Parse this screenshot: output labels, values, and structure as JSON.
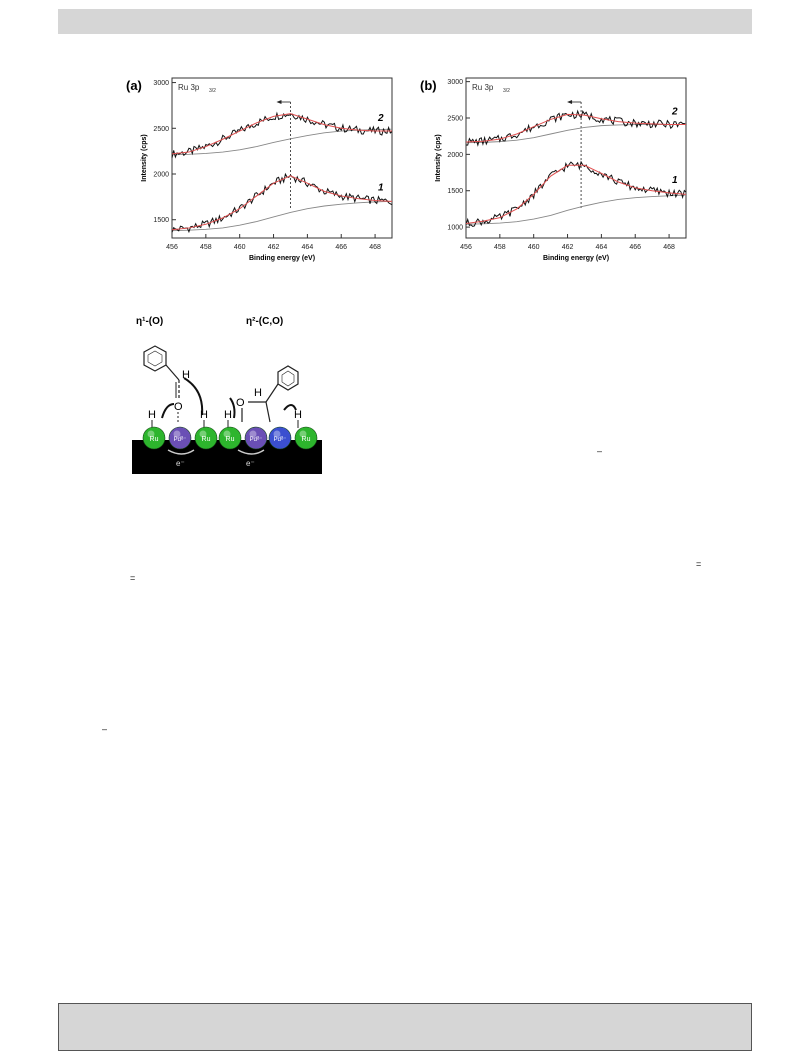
{
  "chart_data": [
    {
      "type": "line",
      "panel_label": "(a)",
      "inset_label": "Ru 3p",
      "inset_subscript": "3/2",
      "xlabel": "Binding energy (eV)",
      "ylabel": "Intensity (cps)",
      "xlim": [
        456,
        469
      ],
      "ylim": [
        1300,
        3050
      ],
      "xticks": [
        "456",
        "458",
        "460",
        "462",
        "464",
        "466",
        "468"
      ],
      "yticks": [
        "1500",
        "2000",
        "2500",
        "3000"
      ],
      "peak_position": 463.0,
      "curve_labels": [
        "2",
        "1"
      ],
      "series": [
        {
          "name": "2",
          "x": [
            456,
            457,
            458,
            459,
            460,
            461,
            462,
            463,
            464,
            465,
            466,
            467,
            468,
            469
          ],
          "values": [
            2220,
            2240,
            2300,
            2380,
            2470,
            2560,
            2630,
            2660,
            2600,
            2540,
            2500,
            2480,
            2470,
            2470
          ],
          "background": [
            2210,
            2215,
            2225,
            2240,
            2265,
            2300,
            2345,
            2385,
            2420,
            2450,
            2470,
            2480,
            2485,
            2490
          ]
        },
        {
          "name": "1",
          "x": [
            456,
            457,
            458,
            459,
            460,
            461,
            462,
            463,
            464,
            465,
            466,
            467,
            468,
            469
          ],
          "values": [
            1390,
            1410,
            1450,
            1520,
            1620,
            1760,
            1900,
            1980,
            1900,
            1810,
            1760,
            1730,
            1710,
            1700
          ],
          "background": [
            1380,
            1385,
            1395,
            1410,
            1440,
            1480,
            1530,
            1580,
            1620,
            1650,
            1670,
            1685,
            1695,
            1700
          ]
        }
      ]
    },
    {
      "type": "line",
      "panel_label": "(b)",
      "inset_label": "Ru 3p",
      "inset_subscript": "3/2",
      "xlabel": "Binding energy (eV)",
      "ylabel": "Intensity (cps)",
      "xlim": [
        456,
        469
      ],
      "ylim": [
        850,
        3050
      ],
      "xticks": [
        "456",
        "458",
        "460",
        "462",
        "464",
        "466",
        "468"
      ],
      "yticks": [
        "1000",
        "1500",
        "2000",
        "2500",
        "3000"
      ],
      "peak_position": 462.8,
      "curve_labels": [
        "2",
        "1"
      ],
      "series": [
        {
          "name": "2",
          "x": [
            456,
            457,
            458,
            459,
            460,
            461,
            462,
            463,
            464,
            465,
            466,
            467,
            468,
            469
          ],
          "values": [
            2170,
            2180,
            2210,
            2280,
            2380,
            2480,
            2550,
            2540,
            2490,
            2450,
            2430,
            2420,
            2410,
            2410
          ],
          "background": [
            2160,
            2165,
            2175,
            2195,
            2230,
            2280,
            2330,
            2370,
            2395,
            2405,
            2410,
            2410,
            2410,
            2410
          ]
        },
        {
          "name": "1",
          "x": [
            456,
            457,
            458,
            459,
            460,
            461,
            462,
            463,
            464,
            465,
            466,
            467,
            468,
            469
          ],
          "values": [
            1050,
            1080,
            1130,
            1250,
            1450,
            1700,
            1850,
            1850,
            1740,
            1620,
            1540,
            1500,
            1470,
            1450
          ],
          "background": [
            1040,
            1045,
            1055,
            1075,
            1110,
            1160,
            1230,
            1290,
            1340,
            1380,
            1405,
            1420,
            1430,
            1440
          ]
        }
      ]
    }
  ],
  "scheme": {
    "label_left": "η¹-(O)",
    "label_right": "η²-(C,O)",
    "atoms": [
      "Ru",
      "Pdᵟ⁻",
      "Ru",
      "Ru",
      "Pdᵟ⁻",
      "Pdᵟ⁻",
      "Ru"
    ],
    "electron": "e⁻",
    "h": "H",
    "o": "O"
  },
  "stray_marks": [
    "–",
    "=",
    "=",
    "–"
  ],
  "colors": {
    "fit": "#e05050",
    "data": "#111111",
    "background": "#888888",
    "ru": "#2db52d",
    "pd": "#6a4fb5",
    "pd_blue": "#3b4fd0",
    "header": "#d6d6d6"
  }
}
